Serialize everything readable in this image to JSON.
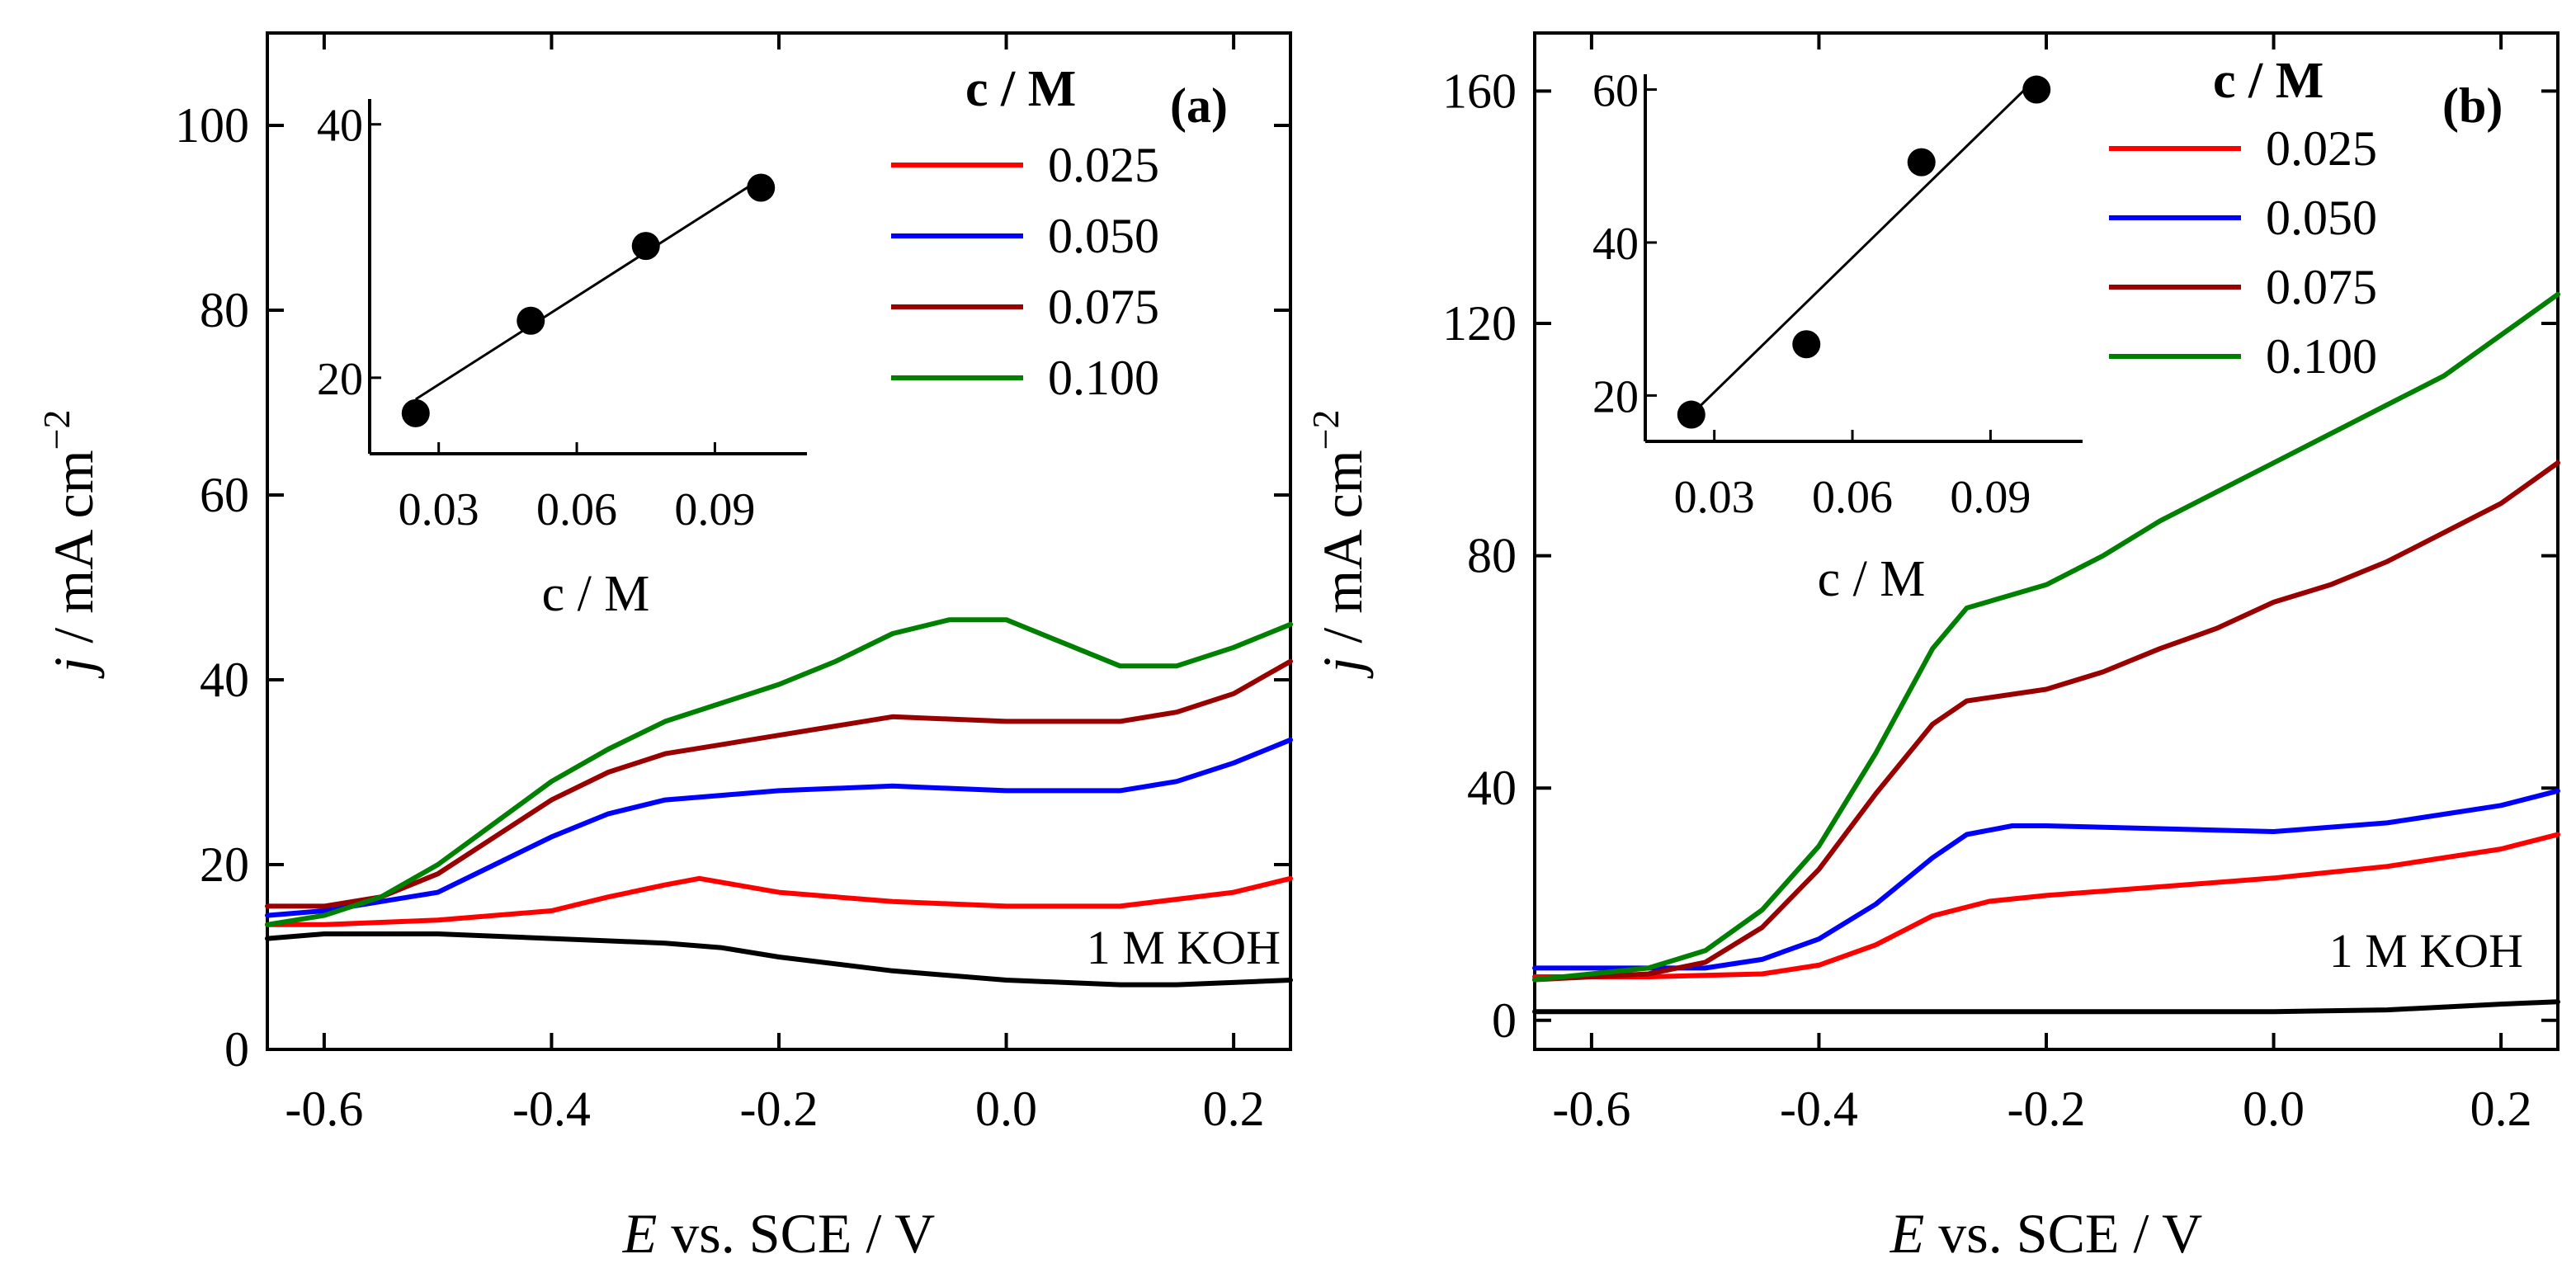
{
  "chart_data": [
    {
      "panel_id": "a",
      "panel_label": "(a)",
      "type": "line",
      "title": "",
      "xlabel": "E vs. SCE / V",
      "xlabel_italic": "E",
      "xlabel_rest": " vs. SCE / V",
      "ylabel": "j / mA cm^-2",
      "ylabel_italic": "j",
      "ylabel_rest": " / mA cm",
      "ylabel_sup": "−2",
      "xlim": [
        -0.65,
        0.25
      ],
      "ylim": [
        0,
        110
      ],
      "xticks": [
        -0.6,
        -0.4,
        -0.2,
        0.0,
        0.2
      ],
      "xtick_labels": [
        "-0.6",
        "-0.4",
        "-0.2",
        "0.0",
        "0.2"
      ],
      "yticks": [
        0,
        20,
        40,
        60,
        80,
        100
      ],
      "ytick_labels": [
        "0",
        "20",
        "40",
        "60",
        "80",
        "100"
      ],
      "legend_title": "c / M",
      "legend_position": "top-right",
      "annotation": "1 M KOH",
      "series": [
        {
          "name": "1 M KOH",
          "in_legend": false,
          "color": "#000000",
          "x": [
            -0.65,
            -0.6,
            -0.5,
            -0.4,
            -0.3,
            -0.25,
            -0.2,
            -0.1,
            0.0,
            0.1,
            0.15,
            0.25
          ],
          "y": [
            12,
            12.5,
            12.5,
            12,
            11.5,
            11,
            10,
            8.5,
            7.5,
            7,
            7,
            7.5
          ]
        },
        {
          "name": "0.025",
          "in_legend": true,
          "color": "#ff0000",
          "x": [
            -0.65,
            -0.6,
            -0.5,
            -0.4,
            -0.35,
            -0.3,
            -0.27,
            -0.2,
            -0.1,
            0.0,
            0.1,
            0.2,
            0.25
          ],
          "y": [
            13.5,
            13.5,
            14,
            15,
            16.5,
            17.8,
            18.5,
            17,
            16,
            15.5,
            15.5,
            17,
            18.5
          ]
        },
        {
          "name": "0.050",
          "in_legend": true,
          "color": "#0000ff",
          "x": [
            -0.65,
            -0.6,
            -0.5,
            -0.45,
            -0.4,
            -0.35,
            -0.3,
            -0.25,
            -0.2,
            -0.1,
            0.0,
            0.1,
            0.15,
            0.2,
            0.25
          ],
          "y": [
            14.5,
            15,
            17,
            20,
            23,
            25.5,
            27,
            27.5,
            28,
            28.5,
            28,
            28,
            29,
            31,
            33.5
          ]
        },
        {
          "name": "0.075",
          "in_legend": true,
          "color": "#990000",
          "x": [
            -0.65,
            -0.6,
            -0.55,
            -0.5,
            -0.45,
            -0.4,
            -0.35,
            -0.3,
            -0.25,
            -0.2,
            -0.15,
            -0.1,
            0.0,
            0.1,
            0.15,
            0.2,
            0.25
          ],
          "y": [
            15.5,
            15.5,
            16.5,
            19,
            23,
            27,
            30,
            32,
            33,
            34,
            35,
            36,
            35.5,
            35.5,
            36.5,
            38.5,
            42
          ]
        },
        {
          "name": "0.100",
          "in_legend": true,
          "color": "#008000",
          "x": [
            -0.65,
            -0.6,
            -0.55,
            -0.5,
            -0.45,
            -0.4,
            -0.35,
            -0.3,
            -0.25,
            -0.2,
            -0.15,
            -0.1,
            -0.05,
            0.0,
            0.05,
            0.1,
            0.15,
            0.2,
            0.25
          ],
          "y": [
            13.5,
            14.5,
            16.5,
            20,
            24.5,
            29,
            32.5,
            35.5,
            37.5,
            39.5,
            42,
            45,
            46.5,
            46.5,
            44,
            41.5,
            41.5,
            43.5,
            46
          ]
        }
      ],
      "inset": {
        "type": "scatter",
        "xlabel": "c / M",
        "ylabel": "",
        "xlim": [
          0.015,
          0.11
        ],
        "ylim": [
          14,
          42
        ],
        "xticks": [
          0.03,
          0.06,
          0.09
        ],
        "xtick_labels": [
          "0.03",
          "0.06",
          "0.09"
        ],
        "yticks": [
          20,
          40
        ],
        "ytick_labels": [
          "20",
          "40"
        ],
        "points": {
          "x": [
            0.025,
            0.05,
            0.075,
            0.1
          ],
          "y": [
            17.2,
            24.5,
            30.4,
            35
          ]
        },
        "fit": {
          "x": [
            0.025,
            0.1
          ],
          "y": [
            18.3,
            35.7
          ]
        }
      }
    },
    {
      "panel_id": "b",
      "panel_label": "(b)",
      "type": "line",
      "title": "",
      "xlabel": "E vs. SCE / V",
      "xlabel_italic": "E",
      "xlabel_rest": " vs. SCE / V",
      "ylabel": "j / mA cm^-2",
      "ylabel_italic": "j",
      "ylabel_rest": " / mA cm",
      "ylabel_sup": "−2",
      "xlim": [
        -0.65,
        0.25
      ],
      "ylim": [
        -5,
        170
      ],
      "xticks": [
        -0.6,
        -0.4,
        -0.2,
        0.0,
        0.2
      ],
      "xtick_labels": [
        "-0.6",
        "-0.4",
        "-0.2",
        "0.0",
        "0.2"
      ],
      "yticks": [
        0,
        40,
        80,
        120,
        160
      ],
      "ytick_labels": [
        "0",
        "40",
        "80",
        "120",
        "160"
      ],
      "legend_title": "c / M",
      "legend_position": "top-right",
      "annotation": "1 M KOH",
      "series": [
        {
          "name": "1 M KOH",
          "in_legend": false,
          "color": "#000000",
          "x": [
            -0.65,
            -0.4,
            -0.2,
            0.0,
            0.1,
            0.2,
            0.25
          ],
          "y": [
            1.5,
            1.5,
            1.5,
            1.5,
            1.8,
            2.8,
            3.2
          ]
        },
        {
          "name": "0.025",
          "in_legend": true,
          "color": "#ff0000",
          "x": [
            -0.65,
            -0.55,
            -0.45,
            -0.4,
            -0.35,
            -0.3,
            -0.25,
            -0.2,
            -0.1,
            0.0,
            0.1,
            0.2,
            0.25
          ],
          "y": [
            7.5,
            7.5,
            8,
            9.5,
            13,
            18,
            20.5,
            21.5,
            23,
            24.5,
            26.5,
            29.5,
            32
          ]
        },
        {
          "name": "0.050",
          "in_legend": true,
          "color": "#0000ff",
          "x": [
            -0.65,
            -0.5,
            -0.45,
            -0.4,
            -0.35,
            -0.3,
            -0.27,
            -0.23,
            -0.2,
            -0.1,
            0.0,
            0.1,
            0.2,
            0.25
          ],
          "y": [
            9,
            9,
            10.5,
            14,
            20,
            28,
            32,
            33.5,
            33.5,
            33,
            32.5,
            34,
            37,
            39.5
          ]
        },
        {
          "name": "0.075",
          "in_legend": true,
          "color": "#990000",
          "x": [
            -0.65,
            -0.55,
            -0.5,
            -0.45,
            -0.4,
            -0.35,
            -0.3,
            -0.27,
            -0.2,
            -0.15,
            -0.1,
            -0.05,
            0.0,
            0.05,
            0.1,
            0.15,
            0.2,
            0.25
          ],
          "y": [
            7,
            8,
            10,
            16,
            26,
            39,
            51,
            55,
            57,
            60,
            64,
            67.5,
            72,
            75,
            79,
            84,
            89,
            96
          ]
        },
        {
          "name": "0.100",
          "in_legend": true,
          "color": "#008000",
          "x": [
            -0.65,
            -0.55,
            -0.5,
            -0.45,
            -0.4,
            -0.35,
            -0.3,
            -0.27,
            -0.2,
            -0.15,
            -0.1,
            -0.05,
            0.0,
            0.05,
            0.1,
            0.15,
            0.2,
            0.25
          ],
          "y": [
            7,
            9,
            12,
            19,
            30,
            46,
            64,
            71,
            75,
            80,
            86,
            91,
            96,
            101,
            106,
            111,
            118,
            125
          ]
        }
      ],
      "inset": {
        "type": "scatter",
        "xlabel": "c / M",
        "ylabel": "",
        "xlim": [
          0.015,
          0.11
        ],
        "ylim": [
          14,
          62
        ],
        "xticks": [
          0.03,
          0.06,
          0.09
        ],
        "xtick_labels": [
          "0.03",
          "0.06",
          "0.09"
        ],
        "yticks": [
          20,
          40,
          60
        ],
        "ytick_labels": [
          "20",
          "40",
          "60"
        ],
        "points": {
          "x": [
            0.025,
            0.05,
            0.075,
            0.1
          ],
          "y": [
            17.5,
            26.7,
            50.5,
            60
          ]
        },
        "fit": {
          "x": [
            0.025,
            0.1
          ],
          "y": [
            17.5,
            61.5
          ]
        }
      }
    }
  ]
}
